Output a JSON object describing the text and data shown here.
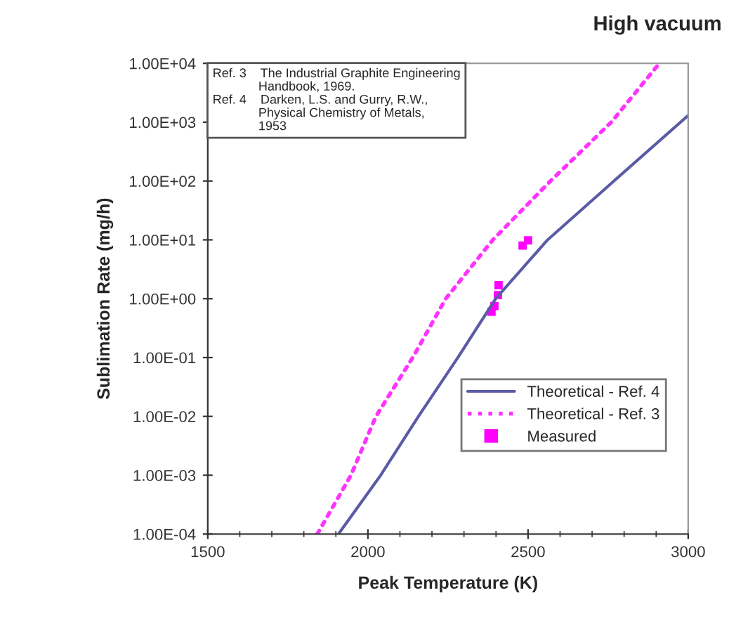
{
  "chart_data": {
    "type": "line",
    "title": "High vacuum",
    "xlabel": "Peak Temperature (K)",
    "ylabel": "Sublimation Rate (mg/h)",
    "annotations": [
      "Ref. 3    The Industrial Graphite Engineering\n             Handbook, 1969.\nRef. 4    Darken, L.S. and Gurry, R.W.,\n             Physical Chemistry of Metals,\n             1953"
    ],
    "series": [
      {
        "name": "Theoretical - Ref. 4",
        "color": "#5b5ba6",
        "line_style": "solid",
        "marker": "none",
        "x": [
          1908,
          2040,
          2158,
          2281,
          2399,
          2561,
          2768,
          3000
        ],
        "values": [
          0.0001,
          0.001,
          0.01,
          0.1,
          1,
          10,
          100,
          1300
        ]
      },
      {
        "name": "Theoretical - Ref. 3",
        "color": "#ff33ff",
        "line_style": "dotted",
        "marker": "none",
        "x": [
          1842,
          1947,
          2025,
          2140,
          2243,
          2390,
          2570,
          2760,
          2910
        ],
        "values": [
          0.0001,
          0.001,
          0.01,
          0.1,
          1,
          10,
          100,
          1000,
          10000
        ]
      },
      {
        "name": "Measured",
        "type": "scatter",
        "color": "#ff00ff",
        "marker": "square",
        "x": [
          2500,
          2483,
          2408,
          2406,
          2395,
          2386
        ],
        "values": [
          9.8,
          8,
          1.7,
          1.15,
          0.75,
          0.6
        ]
      }
    ],
    "log": "y",
    "xlim": [
      1500,
      3000
    ],
    "xticks": [
      1500,
      2000,
      2500,
      3000
    ],
    "ylim": [
      0.0001,
      10000
    ],
    "yticks": [
      {
        "value": 0.0001,
        "label": "1.00E-04"
      },
      {
        "value": 0.001,
        "label": "1.00E-03"
      },
      {
        "value": 0.01,
        "label": "1.00E-02"
      },
      {
        "value": 0.1,
        "label": "1.00E-01"
      },
      {
        "value": 1,
        "label": "1.00E+00"
      },
      {
        "value": 10,
        "label": "1.00E+01"
      },
      {
        "value": 100,
        "label": "1.00E+02"
      },
      {
        "value": 1000,
        "label": "1.00E+03"
      },
      {
        "value": 10000,
        "label": "1.00E+04"
      }
    ],
    "grid": false,
    "legend": "bottom right"
  }
}
